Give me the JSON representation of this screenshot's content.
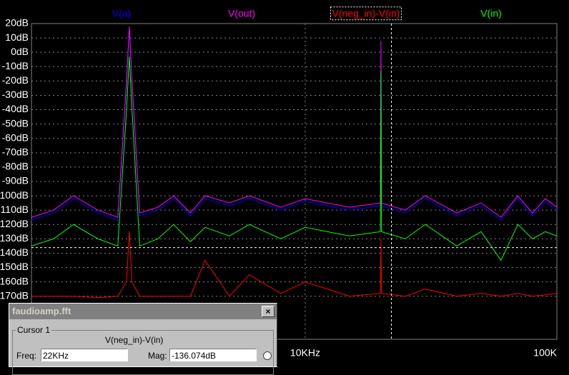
{
  "chart_data": {
    "type": "line",
    "x": [
      817,
      1000,
      1200,
      1500,
      1800,
      1950,
      2000,
      2050,
      2200,
      2600,
      3000,
      3500,
      4000,
      5000,
      6000,
      8000,
      10000,
      15000,
      19900,
      20000,
      20100,
      25000,
      30000,
      40000,
      50000,
      60000,
      70000,
      80000,
      90000,
      100000
    ],
    "series": [
      {
        "name": "V(a)",
        "color": "#0000ff",
        "values": [
          -117,
          -112,
          -102,
          -112,
          -117,
          -22,
          16,
          -22,
          -114,
          -110,
          -102,
          -114,
          -102,
          -107,
          -102,
          -110,
          -104,
          -110,
          -107,
          6,
          -107,
          -112,
          -102,
          -114,
          -107,
          -117,
          -102,
          -114,
          -104,
          -110
        ]
      },
      {
        "name": "V(out)",
        "color": "#ff00ff",
        "values": [
          -115,
          -110,
          -100,
          -110,
          -115,
          -20,
          18,
          -20,
          -112,
          -108,
          -100,
          -112,
          -100,
          -105,
          -100,
          -108,
          -102,
          -108,
          -105,
          8,
          -105,
          -110,
          -100,
          -112,
          -105,
          -115,
          -100,
          -112,
          -102,
          -108
        ]
      },
      {
        "name": "V(neg_in)-V(in)",
        "color": "#ff0000",
        "values": [
          -170,
          -170,
          -170,
          -171,
          -170,
          -160,
          -125,
          -160,
          -170,
          -170,
          -170,
          -170,
          -145,
          -170,
          -155,
          -168,
          -160,
          -170,
          -168,
          -130,
          -168,
          -170,
          -165,
          -170,
          -168,
          -170,
          -168,
          -170,
          -169,
          -168
        ]
      },
      {
        "name": "V(in)",
        "color": "#00ff00",
        "values": [
          -135,
          -130,
          -120,
          -130,
          -135,
          -40,
          -3,
          -40,
          -135,
          -130,
          -120,
          -132,
          -122,
          -128,
          -120,
          -130,
          -122,
          -128,
          -125,
          -13,
          -125,
          -130,
          -120,
          -135,
          -125,
          -145,
          -120,
          -130,
          -125,
          -128
        ]
      }
    ],
    "log_x": true,
    "xlim": [
      817,
      100000
    ],
    "xticks": [
      {
        "value": 10000,
        "label": "10KHz"
      },
      {
        "value": 100000,
        "label": "100K"
      }
    ],
    "ylim": [
      -200,
      20
    ],
    "yticks": [
      {
        "value": 20,
        "label": "20dB"
      },
      {
        "value": 10,
        "label": "10dB"
      },
      {
        "value": 0,
        "label": "0dB"
      },
      {
        "value": -10,
        "label": "-10dB"
      },
      {
        "value": -20,
        "label": "-20dB"
      },
      {
        "value": -30,
        "label": "-30dB"
      },
      {
        "value": -40,
        "label": "-40dB"
      },
      {
        "value": -50,
        "label": "-50dB"
      },
      {
        "value": -60,
        "label": "-60dB"
      },
      {
        "value": -70,
        "label": "-70dB"
      },
      {
        "value": -80,
        "label": "-80dB"
      },
      {
        "value": -90,
        "label": "-90dB"
      },
      {
        "value": -100,
        "label": "-100dB"
      },
      {
        "value": -110,
        "label": "-110dB"
      },
      {
        "value": -120,
        "label": "-120dB"
      },
      {
        "value": -130,
        "label": "-130dB"
      },
      {
        "value": -140,
        "label": "-140dB"
      },
      {
        "value": -150,
        "label": "-150dB"
      },
      {
        "value": -160,
        "label": "-160dB"
      },
      {
        "value": -170,
        "label": "-170dB"
      }
    ],
    "grid": true,
    "cursor": {
      "x": 22000,
      "y": -136.074
    }
  },
  "dialog": {
    "title": "faudioamp.fft",
    "close": "×",
    "group": "Cursor 1",
    "trace": "V(neg_in)-V(in)",
    "freq_label": "Freq:",
    "freq": "22KHz",
    "mag_label": "Mag:",
    "mag": "-136.074dB"
  }
}
